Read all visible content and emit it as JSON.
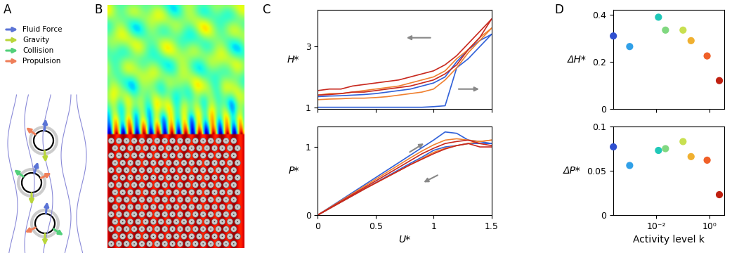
{
  "panel_labels": [
    "A",
    "B",
    "C",
    "D"
  ],
  "forces": [
    {
      "name": "Fluid Force",
      "color": "#5b74d6"
    },
    {
      "name": "Gravity",
      "color": "#b9d63a"
    },
    {
      "name": "Collision",
      "color": "#52d07a"
    },
    {
      "name": "Propulsion",
      "color": "#ef7f5a"
    }
  ],
  "chart_data": [
    {
      "type": "line",
      "y_label": "H*",
      "tick_labels": "y",
      "x": [
        0,
        0.1,
        0.2,
        0.3,
        0.4,
        0.5,
        0.6,
        0.7,
        0.8,
        0.9,
        1.0,
        1.1,
        1.2,
        1.3,
        1.4,
        1.5
      ],
      "xlim": [
        0,
        1.5
      ],
      "xticks": [
        0,
        0.5,
        1,
        1.5
      ],
      "ylim": [
        0.95,
        4.2
      ],
      "yticks": [
        1,
        3
      ],
      "series": [
        {
          "color": "#3060d8",
          "values": [
            1.0,
            1.0,
            1.0,
            1.0,
            1.0,
            1.0,
            1.0,
            1.0,
            1.0,
            1.0,
            1.02,
            1.05,
            2.3,
            2.6,
            3.0,
            3.4
          ]
        },
        {
          "color": "#3060d8",
          "values": [
            1.35,
            1.37,
            1.38,
            1.4,
            1.42,
            1.45,
            1.5,
            1.55,
            1.6,
            1.7,
            1.8,
            2.0,
            2.5,
            2.9,
            3.2,
            3.4
          ]
        },
        {
          "color": "#f08030",
          "values": [
            1.25,
            1.27,
            1.28,
            1.3,
            1.3,
            1.32,
            1.35,
            1.4,
            1.45,
            1.5,
            1.6,
            1.9,
            2.3,
            2.8,
            3.2,
            3.6
          ]
        },
        {
          "color": "#f08030",
          "values": [
            1.4,
            1.45,
            1.45,
            1.5,
            1.55,
            1.6,
            1.65,
            1.7,
            1.8,
            1.9,
            2.0,
            2.2,
            2.6,
            2.9,
            3.3,
            3.6
          ]
        },
        {
          "color": "#c8281e",
          "values": [
            1.4,
            1.42,
            1.45,
            1.5,
            1.5,
            1.55,
            1.6,
            1.65,
            1.7,
            1.8,
            1.9,
            2.1,
            2.4,
            2.9,
            3.3,
            3.9
          ]
        },
        {
          "color": "#c8281e",
          "values": [
            1.55,
            1.6,
            1.6,
            1.7,
            1.75,
            1.8,
            1.85,
            1.9,
            2.0,
            2.1,
            2.2,
            2.4,
            2.7,
            3.1,
            3.5,
            3.9
          ]
        }
      ]
    },
    {
      "type": "line",
      "x_label": "U*",
      "y_label": "P*",
      "x": [
        0,
        0.1,
        0.2,
        0.3,
        0.4,
        0.5,
        0.6,
        0.7,
        0.8,
        0.9,
        1.0,
        1.1,
        1.2,
        1.3,
        1.4,
        1.5
      ],
      "xlim": [
        0,
        1.5
      ],
      "xticks": [
        0,
        0.5,
        1,
        1.5
      ],
      "ylim": [
        0,
        1.3
      ],
      "yticks": [
        0,
        1
      ],
      "series": [
        {
          "color": "#3060d8",
          "values": [
            0,
            0.11,
            0.22,
            0.33,
            0.44,
            0.55,
            0.66,
            0.77,
            0.88,
            0.99,
            1.1,
            1.22,
            1.2,
            1.1,
            1.08,
            1.05
          ]
        },
        {
          "color": "#3060d8",
          "values": [
            0,
            0.095,
            0.19,
            0.285,
            0.38,
            0.475,
            0.57,
            0.665,
            0.76,
            0.85,
            0.95,
            1.0,
            1.02,
            1.05,
            1.05,
            1.05
          ]
        },
        {
          "color": "#f08030",
          "values": [
            0,
            0.105,
            0.21,
            0.315,
            0.42,
            0.525,
            0.63,
            0.735,
            0.84,
            0.94,
            1.03,
            1.1,
            1.12,
            1.1,
            1.08,
            1.1
          ]
        },
        {
          "color": "#f08030",
          "values": [
            0,
            0.095,
            0.19,
            0.285,
            0.38,
            0.47,
            0.56,
            0.65,
            0.74,
            0.83,
            0.92,
            0.98,
            1.02,
            1.05,
            1.08,
            1.1
          ]
        },
        {
          "color": "#c8281e",
          "values": [
            0,
            0.1,
            0.2,
            0.3,
            0.4,
            0.5,
            0.6,
            0.7,
            0.8,
            0.9,
            0.98,
            1.05,
            1.08,
            1.1,
            1.05,
            1.02
          ]
        },
        {
          "color": "#c8281e",
          "values": [
            0,
            0.095,
            0.19,
            0.285,
            0.38,
            0.47,
            0.56,
            0.65,
            0.74,
            0.82,
            0.9,
            0.97,
            1.02,
            1.05,
            1.0,
            1.0
          ]
        }
      ]
    },
    {
      "type": "scatter",
      "y_label": "ΔH*",
      "tick_labels": "y",
      "log": "x",
      "x": [
        0,
        0.001,
        0.012,
        0.022,
        0.1,
        0.2,
        0.8,
        2.3
      ],
      "values": [
        0.31,
        0.265,
        0.39,
        0.335,
        0.335,
        0.29,
        0.225,
        0.12
      ],
      "colors": [
        "#3050d0",
        "#30a0e8",
        "#20c8b8",
        "#80d880",
        "#c8e050",
        "#f0b030",
        "#f06028",
        "#c02010"
      ],
      "xlim": [
        0,
        3.5
      ],
      "xticks": [
        {
          "value": 0.01,
          "label": "10⁻²"
        },
        {
          "value": 1,
          "label": "10⁰"
        }
      ],
      "ylim": [
        0,
        0.42
      ],
      "yticks": [
        0,
        0.2,
        0.4
      ]
    },
    {
      "type": "scatter",
      "x_label": "Activity level k",
      "y_label": "ΔP*",
      "log": "x",
      "x": [
        0,
        0.001,
        0.012,
        0.022,
        0.1,
        0.2,
        0.8,
        2.3
      ],
      "values": [
        0.077,
        0.056,
        0.073,
        0.075,
        0.083,
        0.066,
        0.062,
        0.023
      ],
      "colors": [
        "#3050d0",
        "#30a0e8",
        "#20c8b8",
        "#80d880",
        "#c8e050",
        "#f0b030",
        "#f06028",
        "#c02010"
      ],
      "xlim": [
        0,
        3.5
      ],
      "xticks": [
        {
          "value": 0.01,
          "label": "10⁻²"
        },
        {
          "value": 1,
          "label": "10⁰"
        }
      ],
      "ylim": [
        0,
        0.1
      ],
      "yticks": [
        0,
        0.05,
        0.1
      ]
    }
  ]
}
